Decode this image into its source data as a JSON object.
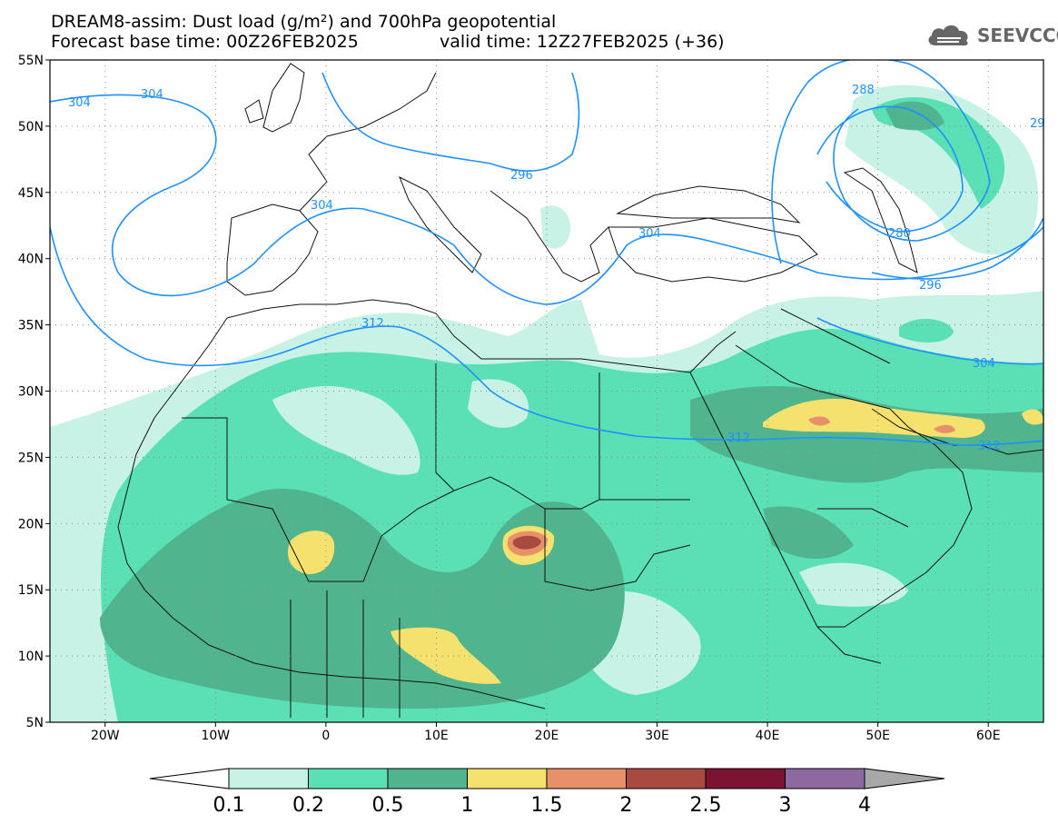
{
  "header": {
    "title_line1": "DREAM8-assim: Dust load (g/m²) and 700hPa geopotential",
    "title_line2": "Forecast base time: 00Z26FEB2025",
    "valid_time": "valid time: 12Z27FEB2025 (+36)",
    "logo_text": "SEEVCCC",
    "logo_icon": "cloud-icon"
  },
  "map": {
    "lat_labels": [
      "55N",
      "50N",
      "45N",
      "40N",
      "35N",
      "30N",
      "25N",
      "20N",
      "15N",
      "10N",
      "5N"
    ],
    "lon_labels": [
      "20W",
      "10W",
      "0",
      "10E",
      "20E",
      "30E",
      "40E",
      "50E",
      "60E"
    ],
    "contour_labels": [
      "304",
      "304",
      "296",
      "304",
      "304",
      "312",
      "312",
      "304",
      "312",
      "288",
      "280",
      "296",
      "29"
    ],
    "contour_color": "#1e90ff"
  },
  "colorbar": {
    "labels": [
      "0.1",
      "0.2",
      "0.5",
      "1",
      "1.5",
      "2",
      "2.5",
      "3",
      "4"
    ],
    "colors": [
      "#c8f2e6",
      "#5ae0b4",
      "#50b48e",
      "#f5e26e",
      "#e8906a",
      "#a84a40",
      "#7a1432",
      "#8c6aa0"
    ],
    "under_color": "#ffffff",
    "over_color": "#a8a8a8"
  }
}
